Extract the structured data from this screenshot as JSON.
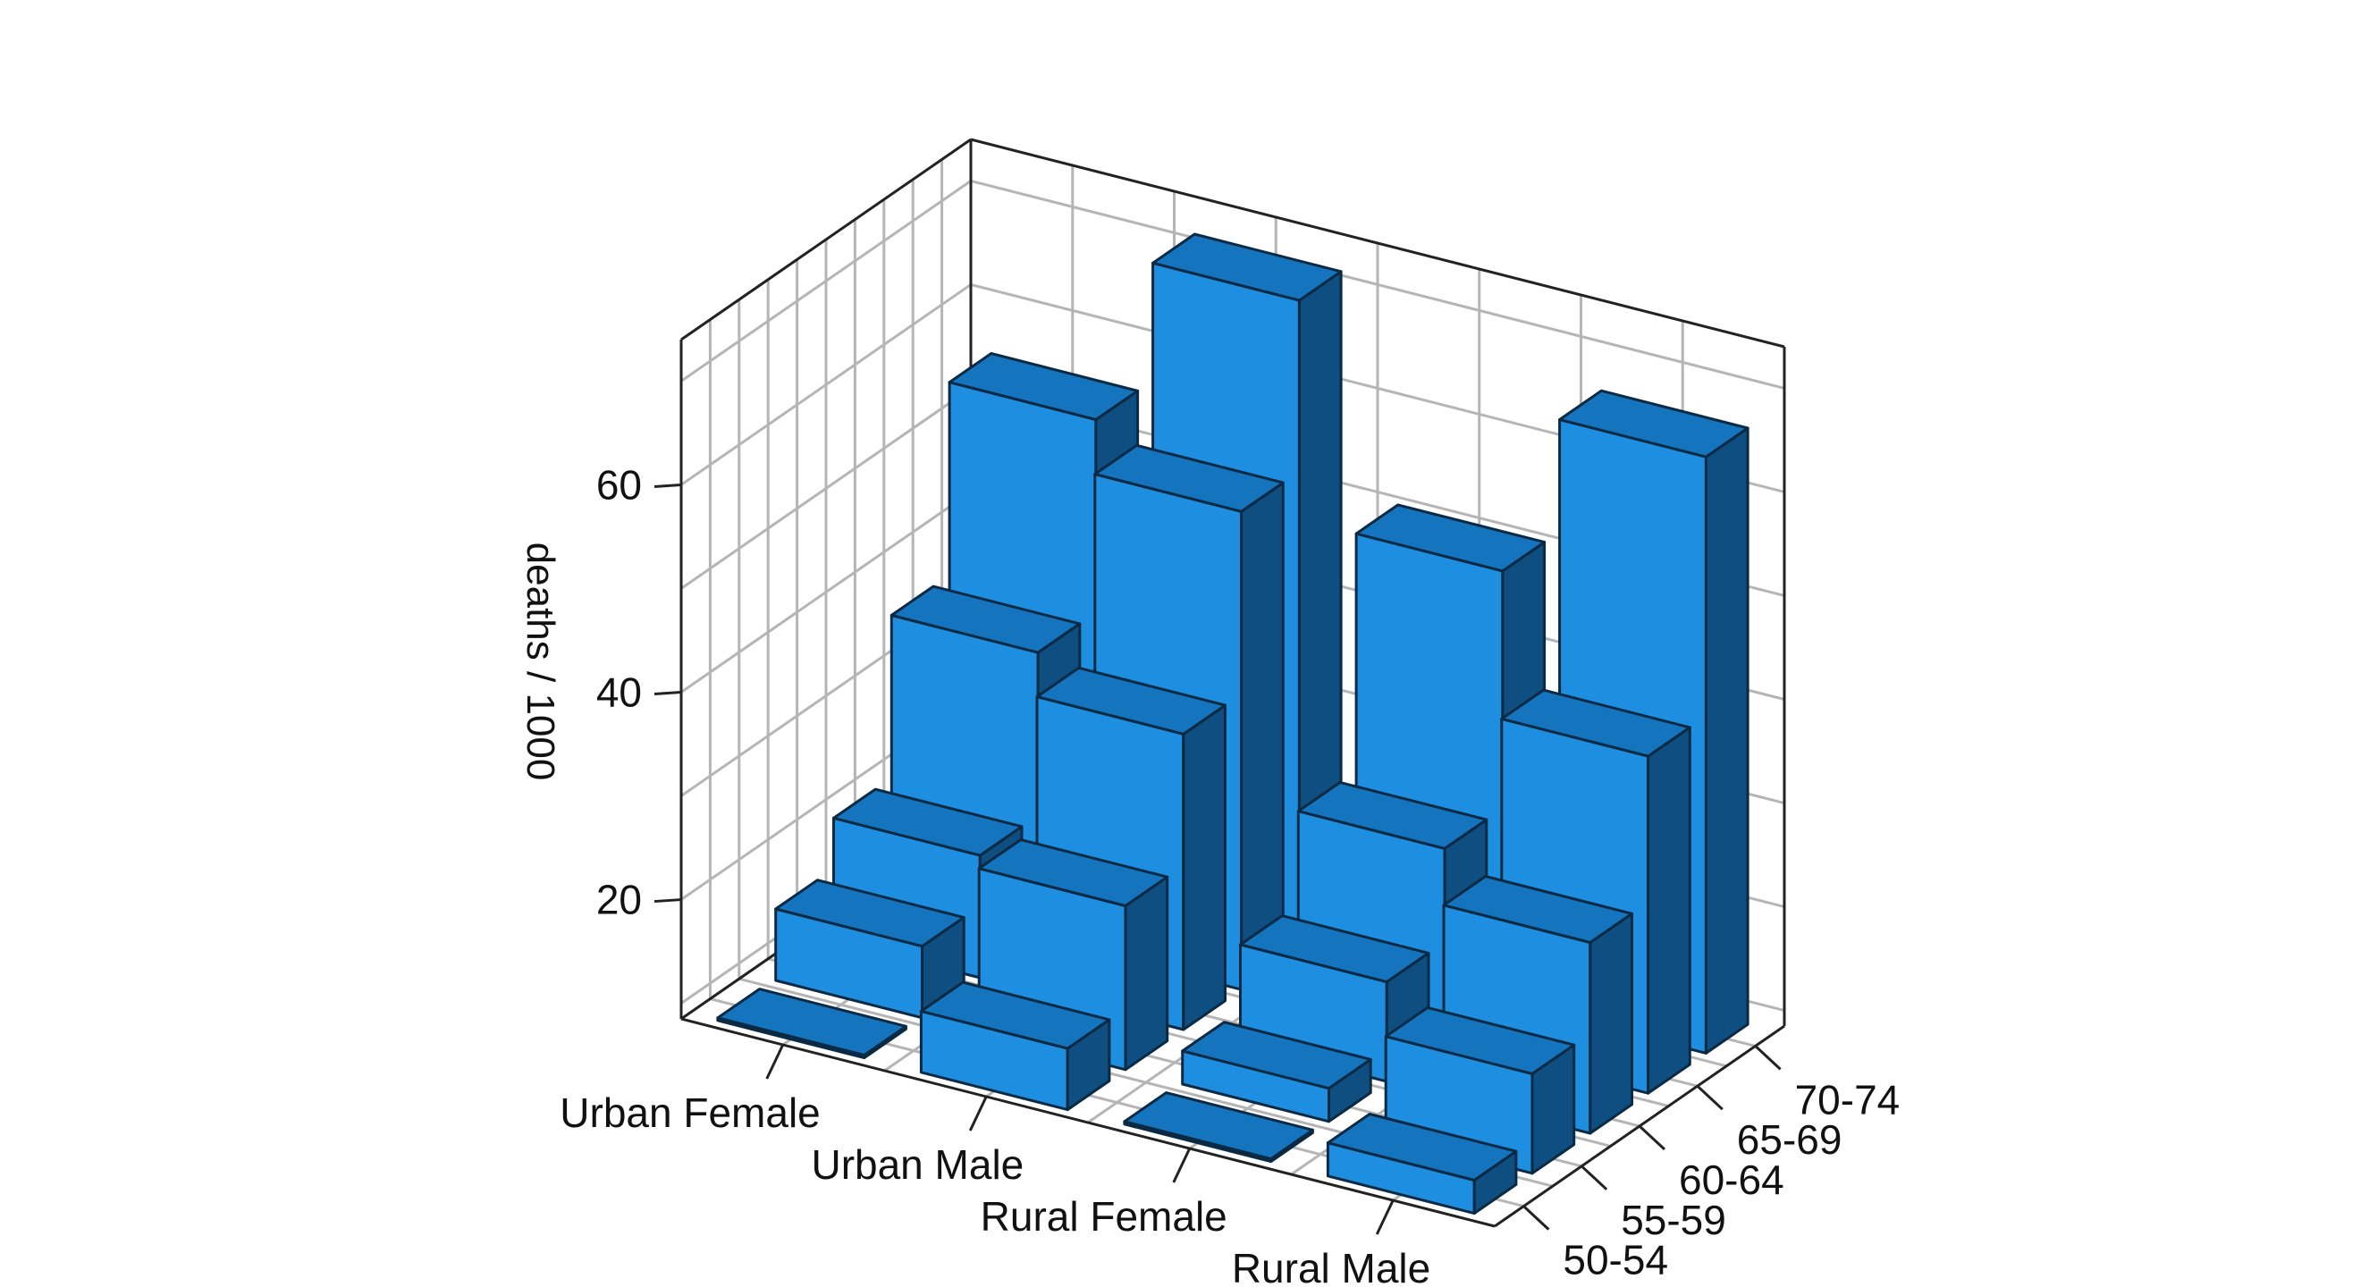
{
  "chart_data": {
    "type": "bar3d",
    "title": "",
    "zlabel": "deaths / 1000",
    "zlim": [
      8.5,
      74
    ],
    "zticks": [
      20,
      40,
      60
    ],
    "xcategories": [
      "Urban Female",
      "Urban Male",
      "Rural Female",
      "Rural Male"
    ],
    "ycategories": [
      "50-54",
      "55-59",
      "60-64",
      "65-69",
      "70-74"
    ],
    "series": [
      {
        "name": "Urban Female",
        "values": [
          8.7,
          15.4,
          20.3,
          36.0,
          54.6
        ]
      },
      {
        "name": "Urban Male",
        "values": [
          14.4,
          24.3,
          37.0,
          54.6,
          71.1
        ]
      },
      {
        "name": "Rural Female",
        "values": [
          8.7,
          11.7,
          18.1,
          27.1,
          50.0
        ]
      },
      {
        "name": "Rural Male",
        "values": [
          11.7,
          18.1,
          26.9,
          41.0,
          66.0
        ]
      }
    ],
    "grid": true,
    "colors": {
      "front": "#1e8fe0",
      "top": "#1474be",
      "side": "#0f4e80",
      "edge": "#0a2a44"
    }
  }
}
